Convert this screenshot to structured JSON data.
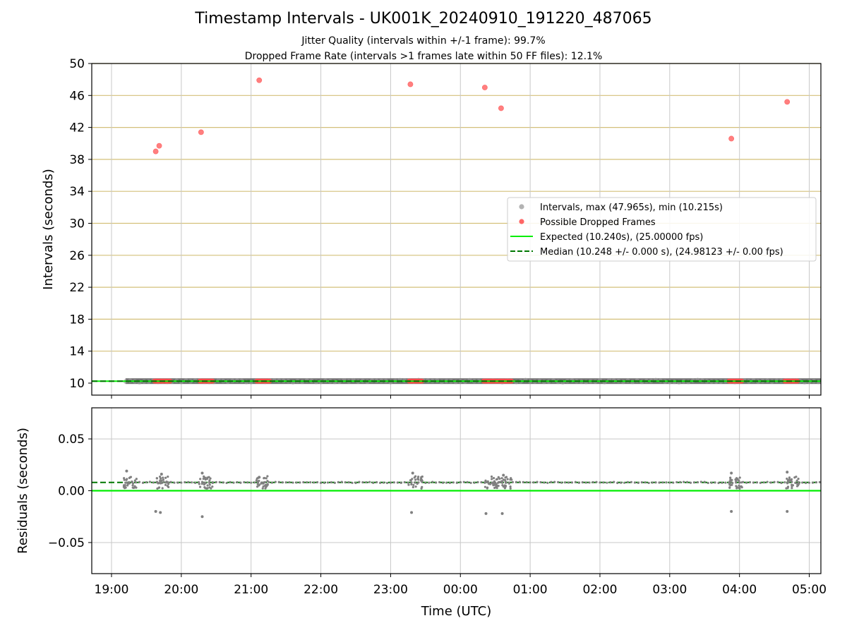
{
  "title": "Timestamp Intervals - UK001K_20240910_191220_487065",
  "subtitle_1": "Jitter Quality (intervals within +/-1 frame): 99.7%",
  "subtitle_2": "Dropped Frame Rate (intervals >1 frames late within 50 FF files): 12.1%",
  "chart_data": [
    {
      "type": "scatter",
      "panel": "top",
      "ylabel": "Intervals (seconds)",
      "xlabel": "",
      "xlim": [
        "18:43",
        "05:10"
      ],
      "ylim": [
        8.5,
        50
      ],
      "yticks": [
        10,
        14,
        18,
        22,
        26,
        30,
        34,
        38,
        42,
        46,
        50
      ],
      "xticks": [
        "19:00",
        "20:00",
        "21:00",
        "22:00",
        "23:00",
        "00:00",
        "01:00",
        "02:00",
        "03:00",
        "04:00",
        "05:00"
      ],
      "grid": true,
      "legend_position": "center-right",
      "legend": [
        {
          "label": "Intervals, max (47.965s), min (10.215s)",
          "marker": "dot",
          "color": "#a0a0a0"
        },
        {
          "label": "Possible Dropped Frames",
          "marker": "dot",
          "color": "#ff4040"
        },
        {
          "label": "Expected (10.240s), (25.00000 fps)",
          "marker": "solid-line",
          "color": "#00ee00"
        },
        {
          "label": "Median (10.248 +/- 0.000 s), (24.98123 +/- 0.00 fps)",
          "marker": "dashed-line",
          "color": "#007700"
        }
      ],
      "expected_interval": 10.24,
      "median_interval": 10.248,
      "intervals_time_range": [
        "19:12",
        "05:10"
      ],
      "intervals_value": 10.248,
      "dropped_frames": [
        {
          "time": "19:38",
          "value": 39.0
        },
        {
          "time": "19:41",
          "value": 39.7
        },
        {
          "time": "20:17",
          "value": 41.4
        },
        {
          "time": "21:07",
          "value": 47.9
        },
        {
          "time": "23:17",
          "value": 47.4
        },
        {
          "time": "00:21",
          "value": 47.0
        },
        {
          "time": "00:35",
          "value": 44.4
        },
        {
          "time": "03:53",
          "value": 40.6
        },
        {
          "time": "04:41",
          "value": 45.2
        }
      ],
      "dropped_clusters_at_baseline": [
        [
          "19:37",
          "19:51"
        ],
        [
          "20:16",
          "20:28"
        ],
        [
          "21:05",
          "21:17"
        ],
        [
          "23:16",
          "23:28"
        ],
        [
          "00:20",
          "00:32"
        ],
        [
          "00:33",
          "00:45"
        ],
        [
          "03:51",
          "04:03"
        ],
        [
          "04:39",
          "04:51"
        ]
      ]
    },
    {
      "type": "scatter",
      "panel": "bottom",
      "ylabel": "Residuals (seconds)",
      "xlabel": "Time (UTC)",
      "xlim": [
        "18:43",
        "05:10"
      ],
      "ylim": [
        -0.08,
        0.08
      ],
      "yticks": [
        0.05,
        0.0,
        -0.05
      ],
      "ytick_labels": [
        "0.05",
        "0.00",
        "−0.05"
      ],
      "xticks": [
        "19:00",
        "20:00",
        "21:00",
        "22:00",
        "23:00",
        "00:00",
        "01:00",
        "02:00",
        "03:00",
        "04:00",
        "05:00"
      ],
      "grid": true,
      "expected_residual": 0.0,
      "median_residual": 0.008,
      "baseline_residual": 0.008,
      "residual_time_range": [
        "19:12",
        "05:10"
      ],
      "cluster_centers": [
        "19:14",
        "19:41",
        "20:19",
        "21:07",
        "23:19",
        "00:24",
        "00:36",
        "03:55",
        "04:43"
      ],
      "outliers": [
        {
          "time": "19:13",
          "value": 0.019
        },
        {
          "time": "19:38",
          "value": -0.02
        },
        {
          "time": "19:42",
          "value": -0.021
        },
        {
          "time": "19:43",
          "value": 0.016
        },
        {
          "time": "20:18",
          "value": -0.025
        },
        {
          "time": "20:18",
          "value": 0.017
        },
        {
          "time": "21:07",
          "value": 0.013
        },
        {
          "time": "23:18",
          "value": -0.021
        },
        {
          "time": "23:19",
          "value": 0.017
        },
        {
          "time": "00:22",
          "value": -0.022
        },
        {
          "time": "00:36",
          "value": -0.022
        },
        {
          "time": "00:37",
          "value": 0.015
        },
        {
          "time": "03:53",
          "value": -0.02
        },
        {
          "time": "03:53",
          "value": 0.017
        },
        {
          "time": "04:41",
          "value": -0.02
        },
        {
          "time": "04:41",
          "value": 0.018
        }
      ]
    }
  ],
  "colors": {
    "intervals": "#9a9a9a",
    "dropped": "#ff4a4a",
    "expected": "#00ee00",
    "median": "#007700",
    "hgrid_top": "#d4c07a",
    "vgrid": "#c8c8c8",
    "grid_bottom": "#c8c8c8"
  }
}
